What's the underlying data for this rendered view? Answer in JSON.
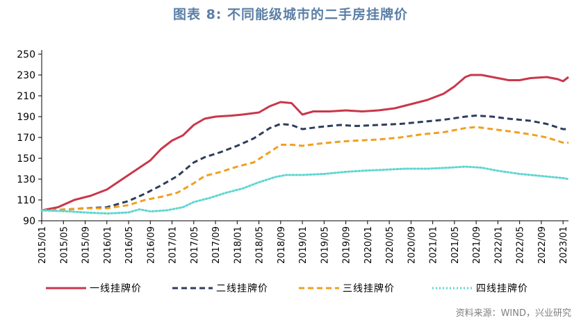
{
  "page": {
    "title": "图表 8:   不同能级城市的二手房挂牌价",
    "source": "资料来源：WIND，兴业研究"
  },
  "chart_data": {
    "type": "line",
    "title": "图表 8:   不同能级城市的二手房挂牌价",
    "xlabel": "",
    "ylabel": "",
    "ylim": [
      90,
      250
    ],
    "yticks": [
      90,
      110,
      130,
      150,
      170,
      190,
      210,
      230,
      250
    ],
    "x_start": "2015/01",
    "x_end": "2023/02",
    "x_tick_labels": [
      "2015/01",
      "2015/05",
      "2015/09",
      "2016/01",
      "2016/05",
      "2016/09",
      "2017/01",
      "2017/05",
      "2017/09",
      "2018/01",
      "2018/05",
      "2018/09",
      "2019/01",
      "2019/05",
      "2019/09",
      "2020/01",
      "2020/05",
      "2020/09",
      "2021/01",
      "2021/05",
      "2021/09",
      "2022/01",
      "2022/05",
      "2022/09",
      "2023/01"
    ],
    "grid": false,
    "legend_position": "bottom",
    "series": [
      {
        "name": "一线挂牌价",
        "color": "#c9374a",
        "dash": "solid",
        "values": [
          [
            "2015/01",
            100
          ],
          [
            "2015/04",
            103
          ],
          [
            "2015/07",
            110
          ],
          [
            "2015/10",
            114
          ],
          [
            "2016/01",
            120
          ],
          [
            "2016/03",
            127
          ],
          [
            "2016/05",
            134
          ],
          [
            "2016/07",
            141
          ],
          [
            "2016/09",
            148
          ],
          [
            "2016/11",
            159
          ],
          [
            "2017/01",
            167
          ],
          [
            "2017/03",
            172
          ],
          [
            "2017/05",
            182
          ],
          [
            "2017/07",
            188
          ],
          [
            "2017/09",
            190
          ],
          [
            "2017/12",
            191
          ],
          [
            "2018/02",
            192
          ],
          [
            "2018/05",
            194
          ],
          [
            "2018/07",
            200
          ],
          [
            "2018/09",
            204
          ],
          [
            "2018/11",
            203
          ],
          [
            "2019/01",
            192
          ],
          [
            "2019/03",
            195
          ],
          [
            "2019/06",
            195
          ],
          [
            "2019/09",
            196
          ],
          [
            "2019/12",
            195
          ],
          [
            "2020/03",
            196
          ],
          [
            "2020/06",
            198
          ],
          [
            "2020/09",
            202
          ],
          [
            "2020/12",
            206
          ],
          [
            "2021/03",
            212
          ],
          [
            "2021/05",
            219
          ],
          [
            "2021/07",
            228
          ],
          [
            "2021/08",
            230
          ],
          [
            "2021/10",
            230
          ],
          [
            "2022/01",
            227
          ],
          [
            "2022/03",
            225
          ],
          [
            "2022/05",
            225
          ],
          [
            "2022/07",
            227
          ],
          [
            "2022/10",
            228
          ],
          [
            "2022/12",
            226
          ],
          [
            "2023/01",
            224
          ],
          [
            "2023/02",
            228
          ]
        ]
      },
      {
        "name": "二线挂牌价",
        "color": "#2e3d5c",
        "dash": "dashed",
        "values": [
          [
            "2015/01",
            100
          ],
          [
            "2015/06",
            101
          ],
          [
            "2015/09",
            102
          ],
          [
            "2016/01",
            103
          ],
          [
            "2016/05",
            109
          ],
          [
            "2016/08",
            116
          ],
          [
            "2016/11",
            124
          ],
          [
            "2017/02",
            133
          ],
          [
            "2017/05",
            146
          ],
          [
            "2017/07",
            151
          ],
          [
            "2017/10",
            156
          ],
          [
            "2018/01",
            162
          ],
          [
            "2018/04",
            169
          ],
          [
            "2018/07",
            179
          ],
          [
            "2018/09",
            183
          ],
          [
            "2018/11",
            182
          ],
          [
            "2019/01",
            178
          ],
          [
            "2019/04",
            180
          ],
          [
            "2019/08",
            182
          ],
          [
            "2019/11",
            181
          ],
          [
            "2020/03",
            182
          ],
          [
            "2020/07",
            183
          ],
          [
            "2020/11",
            185
          ],
          [
            "2021/03",
            187
          ],
          [
            "2021/07",
            190
          ],
          [
            "2021/09",
            191
          ],
          [
            "2021/12",
            190
          ],
          [
            "2022/03",
            188
          ],
          [
            "2022/07",
            186
          ],
          [
            "2022/10",
            183
          ],
          [
            "2023/01",
            178
          ],
          [
            "2023/02",
            178
          ]
        ]
      },
      {
        "name": "三线挂牌价",
        "color": "#f0a020",
        "dash": "dashed",
        "values": [
          [
            "2015/01",
            100
          ],
          [
            "2015/06",
            101
          ],
          [
            "2015/09",
            102
          ],
          [
            "2016/01",
            102
          ],
          [
            "2016/05",
            105
          ],
          [
            "2016/08",
            110
          ],
          [
            "2016/11",
            113
          ],
          [
            "2017/02",
            117
          ],
          [
            "2017/05",
            126
          ],
          [
            "2017/07",
            133
          ],
          [
            "2017/10",
            137
          ],
          [
            "2018/01",
            142
          ],
          [
            "2018/04",
            146
          ],
          [
            "2018/07",
            156
          ],
          [
            "2018/09",
            163
          ],
          [
            "2018/11",
            163
          ],
          [
            "2019/01",
            162
          ],
          [
            "2019/04",
            164
          ],
          [
            "2019/08",
            166
          ],
          [
            "2019/11",
            167
          ],
          [
            "2020/03",
            168
          ],
          [
            "2020/07",
            170
          ],
          [
            "2020/11",
            173
          ],
          [
            "2021/03",
            175
          ],
          [
            "2021/07",
            179
          ],
          [
            "2021/09",
            180
          ],
          [
            "2021/12",
            178
          ],
          [
            "2022/03",
            176
          ],
          [
            "2022/07",
            173
          ],
          [
            "2022/10",
            170
          ],
          [
            "2023/01",
            165
          ],
          [
            "2023/02",
            165
          ]
        ]
      },
      {
        "name": "四线挂牌价",
        "color": "#5ed6d0",
        "dash": "dotted",
        "values": [
          [
            "2015/01",
            100
          ],
          [
            "2015/06",
            99
          ],
          [
            "2015/09",
            98
          ],
          [
            "2016/01",
            97
          ],
          [
            "2016/05",
            98
          ],
          [
            "2016/07",
            101
          ],
          [
            "2016/09",
            99
          ],
          [
            "2016/12",
            100
          ],
          [
            "2017/03",
            103
          ],
          [
            "2017/05",
            108
          ],
          [
            "2017/08",
            112
          ],
          [
            "2017/11",
            117
          ],
          [
            "2018/02",
            121
          ],
          [
            "2018/05",
            127
          ],
          [
            "2018/08",
            132
          ],
          [
            "2018/10",
            134
          ],
          [
            "2019/01",
            134
          ],
          [
            "2019/05",
            135
          ],
          [
            "2019/09",
            137
          ],
          [
            "2019/12",
            138
          ],
          [
            "2020/04",
            139
          ],
          [
            "2020/08",
            140
          ],
          [
            "2020/12",
            140
          ],
          [
            "2021/04",
            141
          ],
          [
            "2021/07",
            142
          ],
          [
            "2021/10",
            141
          ],
          [
            "2022/01",
            138
          ],
          [
            "2022/05",
            135
          ],
          [
            "2022/09",
            133
          ],
          [
            "2023/01",
            131
          ],
          [
            "2023/02",
            130
          ]
        ]
      }
    ]
  }
}
